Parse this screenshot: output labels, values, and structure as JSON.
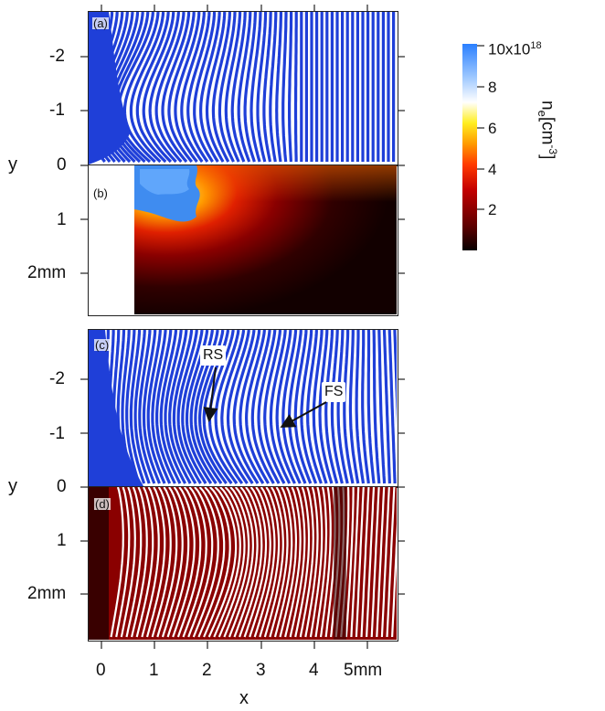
{
  "figure": {
    "panel_labels": [
      "(a)",
      "(b)",
      "(c)",
      "(d)"
    ],
    "y_axis": {
      "label": "y",
      "ticks_top": [
        "-2",
        "-1",
        "0",
        "1",
        "2mm"
      ],
      "ticks_bottom": [
        "-2",
        "-1",
        "0",
        "1",
        "2mm"
      ]
    },
    "x_axis": {
      "label": "x",
      "ticks": [
        "0",
        "1",
        "2",
        "3",
        "4",
        "5mm"
      ]
    },
    "annotations": {
      "rs": "RS",
      "fs": "FS"
    },
    "colorbar": {
      "label": "n",
      "label_subscript": "e",
      "label_unit_open": "[cm",
      "label_unit_exp": "-3",
      "label_unit_close": "]",
      "ticks": [
        "10x10",
        "8",
        "6",
        "4",
        "2"
      ],
      "top_exponent": "18",
      "range": [
        0,
        10
      ],
      "colors": [
        "#000000",
        "#5a0000",
        "#c40000",
        "#ff3a00",
        "#ff9a00",
        "#ffee20",
        "#ffffff",
        "#9ec8ff",
        "#2a7fff"
      ]
    },
    "colors": {
      "fringe_blue": "#1f3fd8",
      "fringe_red": "#d01010",
      "dark_red": "#3a0000"
    }
  }
}
